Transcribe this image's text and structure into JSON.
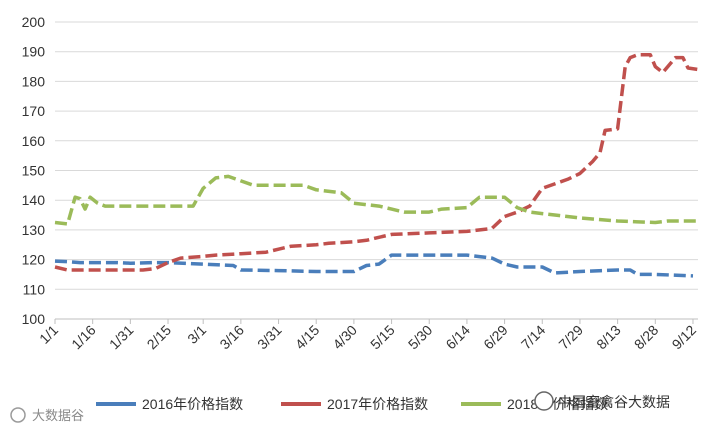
{
  "chart_data": {
    "type": "line",
    "ylim": [
      100,
      200
    ],
    "yticks": [
      100,
      110,
      120,
      130,
      140,
      150,
      160,
      170,
      180,
      190,
      200
    ],
    "xticks": [
      "1/1",
      "1/16",
      "1/31",
      "2/15",
      "3/1",
      "3/16",
      "3/31",
      "4/15",
      "4/30",
      "5/15",
      "5/30",
      "6/14",
      "6/29",
      "7/14",
      "7/29",
      "8/13",
      "8/28",
      "9/12"
    ],
    "grid": "horizontal",
    "legend_position": "bottom",
    "series": [
      {
        "name": "2016年价格指数",
        "color": "#4a7ebb",
        "dashed": true,
        "points": [
          {
            "x": "1/1",
            "y": 119.5
          },
          {
            "x": "1/6",
            "y": 119.3
          },
          {
            "x": "1/11",
            "y": 119.0
          },
          {
            "x": "1/16",
            "y": 119.0
          },
          {
            "x": "1/26",
            "y": 119.0
          },
          {
            "x": "1/31",
            "y": 118.8
          },
          {
            "x": "2/10",
            "y": 119.0
          },
          {
            "x": "2/15",
            "y": 119.0
          },
          {
            "x": "3/1",
            "y": 118.5
          },
          {
            "x": "3/13",
            "y": 118.0
          },
          {
            "x": "3/16",
            "y": 116.5
          },
          {
            "x": "3/31",
            "y": 116.3
          },
          {
            "x": "4/15",
            "y": 116.0
          },
          {
            "x": "4/30",
            "y": 116.0
          },
          {
            "x": "5/5",
            "y": 118.0
          },
          {
            "x": "5/10",
            "y": 118.5
          },
          {
            "x": "5/15",
            "y": 121.5
          },
          {
            "x": "5/30",
            "y": 121.5
          },
          {
            "x": "6/14",
            "y": 121.5
          },
          {
            "x": "6/19",
            "y": 121.0
          },
          {
            "x": "6/24",
            "y": 120.5
          },
          {
            "x": "6/29",
            "y": 118.5
          },
          {
            "x": "7/4",
            "y": 117.5
          },
          {
            "x": "7/14",
            "y": 117.5
          },
          {
            "x": "7/19",
            "y": 115.5
          },
          {
            "x": "7/29",
            "y": 116.0
          },
          {
            "x": "8/13",
            "y": 116.5
          },
          {
            "x": "8/18",
            "y": 116.5
          },
          {
            "x": "8/21",
            "y": 115.0
          },
          {
            "x": "8/28",
            "y": 115.0
          },
          {
            "x": "9/12",
            "y": 114.5
          }
        ]
      },
      {
        "name": "2017年价格指数",
        "color": "#c0504d",
        "dashed": true,
        "points": [
          {
            "x": "1/1",
            "y": 117.5
          },
          {
            "x": "1/6",
            "y": 116.5
          },
          {
            "x": "1/16",
            "y": 116.5
          },
          {
            "x": "2/5",
            "y": 116.5
          },
          {
            "x": "2/10",
            "y": 117.0
          },
          {
            "x": "2/15",
            "y": 119.0
          },
          {
            "x": "2/20",
            "y": 120.5
          },
          {
            "x": "2/28",
            "y": 121.0
          },
          {
            "x": "3/6",
            "y": 121.5
          },
          {
            "x": "3/16",
            "y": 122.0
          },
          {
            "x": "3/26",
            "y": 122.5
          },
          {
            "x": "3/31",
            "y": 123.5
          },
          {
            "x": "4/5",
            "y": 124.5
          },
          {
            "x": "4/15",
            "y": 125.0
          },
          {
            "x": "4/20",
            "y": 125.5
          },
          {
            "x": "4/30",
            "y": 126.0
          },
          {
            "x": "5/5",
            "y": 126.5
          },
          {
            "x": "5/10",
            "y": 127.5
          },
          {
            "x": "5/15",
            "y": 128.5
          },
          {
            "x": "5/30",
            "y": 129.0
          },
          {
            "x": "6/14",
            "y": 129.5
          },
          {
            "x": "6/24",
            "y": 130.5
          },
          {
            "x": "6/29",
            "y": 134.5
          },
          {
            "x": "7/4",
            "y": 136.0
          },
          {
            "x": "7/9",
            "y": 138.0
          },
          {
            "x": "7/14",
            "y": 144.0
          },
          {
            "x": "7/24",
            "y": 147.0
          },
          {
            "x": "7/29",
            "y": 149.0
          },
          {
            "x": "8/3",
            "y": 153.0
          },
          {
            "x": "8/6",
            "y": 156.0
          },
          {
            "x": "8/8",
            "y": 163.5
          },
          {
            "x": "8/13",
            "y": 164.0
          },
          {
            "x": "8/16",
            "y": 185.0
          },
          {
            "x": "8/18",
            "y": 188.0
          },
          {
            "x": "8/21",
            "y": 189.0
          },
          {
            "x": "8/26",
            "y": 189.0
          },
          {
            "x": "8/28",
            "y": 185.0
          },
          {
            "x": "8/31",
            "y": 183.0
          },
          {
            "x": "9/5",
            "y": 188.0
          },
          {
            "x": "9/8",
            "y": 188.0
          },
          {
            "x": "9/10",
            "y": 184.5
          },
          {
            "x": "9/14",
            "y": 184.0
          }
        ]
      },
      {
        "name": "2018年价格指数",
        "color": "#9bbb59",
        "dashed": true,
        "points": [
          {
            "x": "1/1",
            "y": 132.5
          },
          {
            "x": "1/6",
            "y": 132.0
          },
          {
            "x": "1/9",
            "y": 141.0
          },
          {
            "x": "1/11",
            "y": 140.5
          },
          {
            "x": "1/13",
            "y": 137.0
          },
          {
            "x": "1/15",
            "y": 141.0
          },
          {
            "x": "1/18",
            "y": 139.0
          },
          {
            "x": "1/21",
            "y": 138.0
          },
          {
            "x": "1/31",
            "y": 138.0
          },
          {
            "x": "2/10",
            "y": 138.0
          },
          {
            "x": "2/25",
            "y": 138.0
          },
          {
            "x": "3/1",
            "y": 144.0
          },
          {
            "x": "3/6",
            "y": 147.5
          },
          {
            "x": "3/11",
            "y": 148.0
          },
          {
            "x": "3/16",
            "y": 146.5
          },
          {
            "x": "3/21",
            "y": 145.0
          },
          {
            "x": "3/31",
            "y": 145.0
          },
          {
            "x": "4/10",
            "y": 145.0
          },
          {
            "x": "4/15",
            "y": 143.5
          },
          {
            "x": "4/25",
            "y": 142.5
          },
          {
            "x": "4/30",
            "y": 139.0
          },
          {
            "x": "5/10",
            "y": 138.0
          },
          {
            "x": "5/15",
            "y": 137.0
          },
          {
            "x": "5/20",
            "y": 136.0
          },
          {
            "x": "5/30",
            "y": 136.0
          },
          {
            "x": "6/4",
            "y": 137.0
          },
          {
            "x": "6/14",
            "y": 137.5
          },
          {
            "x": "6/19",
            "y": 141.0
          },
          {
            "x": "6/29",
            "y": 141.0
          },
          {
            "x": "7/4",
            "y": 137.5
          },
          {
            "x": "7/9",
            "y": 136.0
          },
          {
            "x": "7/14",
            "y": 135.5
          },
          {
            "x": "7/24",
            "y": 134.5
          },
          {
            "x": "7/29",
            "y": 134.0
          },
          {
            "x": "8/13",
            "y": 133.0
          },
          {
            "x": "8/28",
            "y": 132.5
          },
          {
            "x": "9/2",
            "y": 133.0
          },
          {
            "x": "9/14",
            "y": 133.0
          }
        ]
      }
    ]
  },
  "watermark": {
    "left_text": "大数据谷",
    "right_text": "中国畜禽谷大数据"
  }
}
